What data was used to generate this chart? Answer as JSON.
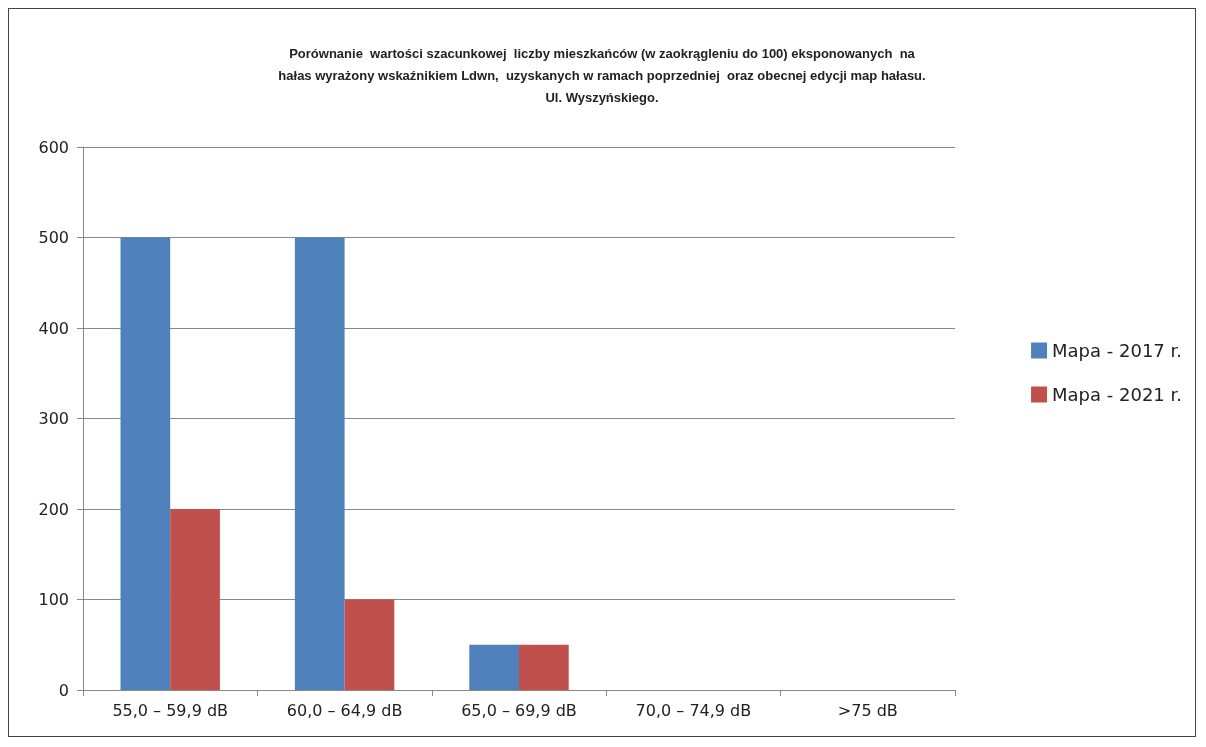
{
  "chart_data": {
    "type": "bar",
    "title": "Porównanie  wartości szacunkowej  liczby mieszkańców (w zaokrągleniu do 100) eksponowanych  na\nhałas wyrażony wskaźnikiem Ldwn,  uzyskanych w ramach poprzedniej  oraz obecnej edycji map hałasu.\nUl. Wyszyńskiego.",
    "categories": [
      "55,0 – 59,9 dB",
      "60,0 – 64,9 dB",
      "65,0 – 69,9 dB",
      "70,0 – 74,9 dB",
      ">75 dB"
    ],
    "series": [
      {
        "name": "Mapa - 2017 r.",
        "color": "#4f81bd",
        "values": [
          500,
          500,
          50,
          0,
          0
        ]
      },
      {
        "name": "Mapa - 2021 r.",
        "color": "#c0504d",
        "values": [
          200,
          100,
          50,
          0,
          0
        ]
      }
    ],
    "ylim": [
      0,
      600
    ],
    "yticks": [
      0,
      100,
      200,
      300,
      400,
      500,
      600
    ],
    "grid": "y",
    "legend": "right"
  }
}
